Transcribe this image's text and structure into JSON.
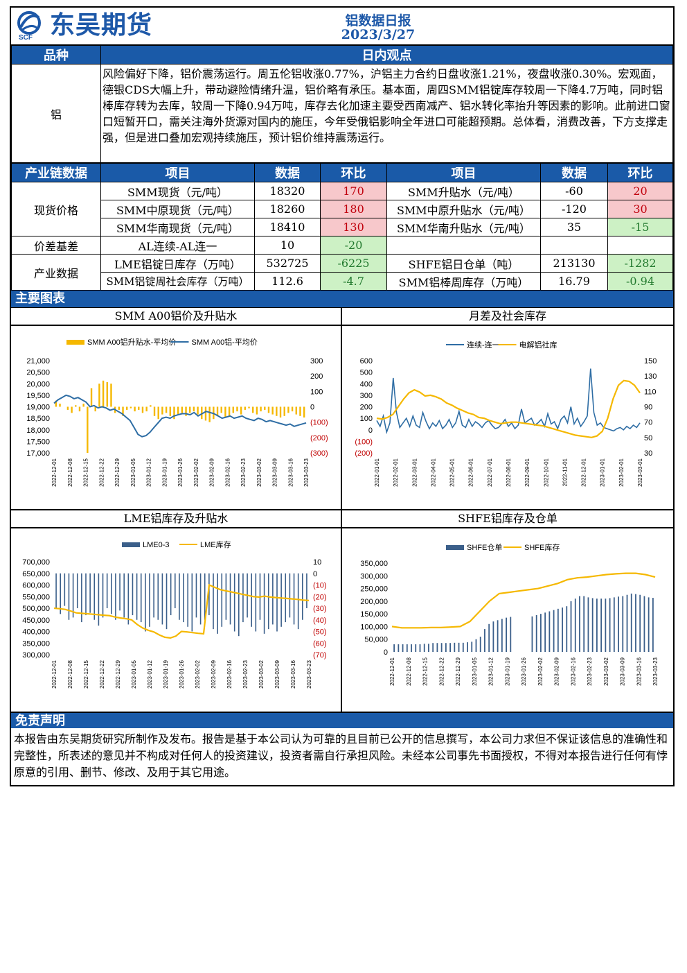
{
  "header": {
    "brand": "东吴期货",
    "logo_sub": "SCF",
    "title": "铝数据日报",
    "date": "2023/3/27"
  },
  "view": {
    "col1": "品种",
    "col2": "日内观点",
    "variety": "铝",
    "text": "风险偏好下降，铝价震荡运行。周五伦铝收涨0.77%，沪铝主力合约日盘收涨1.21%，夜盘收涨0.30%。宏观面，德银CDS大幅上升，带动避险情绪升温，铝价略有承压。基本面，周四SMM铝锭库存较周一下降4.7万吨，同时铝棒库存转为去库，较周一下降0.94万吨，库存去化加速主要受西南减产、铝水转化率抬升等因素的影响。此前进口窗口短暂开口，需关注海外货源对国内的施压，今年受俄铝影响全年进口可能超预期。总体看，消费改善，下方支撑走强，但是进口叠加宏观持续施压，预计铝价维持震荡运行。"
  },
  "chain": {
    "headers": [
      "产业链数据",
      "项目",
      "数据",
      "环比",
      "项目",
      "数据",
      "环比"
    ],
    "groups": {
      "spot": "现货价格",
      "spread": "价差基差",
      "industry": "产业数据"
    },
    "rows": [
      {
        "l_item": "SMM现货（元/吨）",
        "l_val": "18320",
        "l_chg": "170",
        "r_item": "SMM升贴水（元/吨）",
        "r_val": "-60",
        "r_chg": "20"
      },
      {
        "l_item": "SMM中原现货（元/吨）",
        "l_val": "18260",
        "l_chg": "180",
        "r_item": "SMM中原升贴水（元/吨）",
        "r_val": "-120",
        "r_chg": "30"
      },
      {
        "l_item": "SMM华南现货（元/吨）",
        "l_val": "18410",
        "l_chg": "130",
        "r_item": "SMM华南升贴水（元/吨）",
        "r_val": "35",
        "r_chg": "-15"
      },
      {
        "l_item": "AL连续-AL连一",
        "l_val": "10",
        "l_chg": "-20",
        "r_item": "",
        "r_val": "",
        "r_chg": ""
      },
      {
        "l_item": "LME铝锭日库存（万吨）",
        "l_val": "532725",
        "l_chg": "-6225",
        "r_item": "SHFE铝日仓单（吨）",
        "r_val": "213130",
        "r_chg": "-1282"
      },
      {
        "l_item": "SMM铝锭周社会库存（万吨）",
        "l_val": "112.6",
        "l_chg": "-4.7",
        "r_item": "SMM铝棒周库存（万吨）",
        "r_val": "16.79",
        "r_chg": "-0.94"
      }
    ]
  },
  "charts_section": "主要图表",
  "chart_titles": [
    "SMM A00铝价及升贴水",
    "月差及社会库存",
    "LME铝库存及升贴水",
    "SHFE铝库存及仓单"
  ],
  "colors": {
    "blue": "#2e6da4",
    "gold": "#f5b800",
    "bar_blue": "#3b5f8a",
    "header": "#1a5aa8"
  },
  "chart_data": [
    {
      "type": "line",
      "title": "SMM A00铝价及升贴水",
      "series": [
        {
          "name": "SMM A00铝升贴水-平均价",
          "type": "bar",
          "axis": "right"
        },
        {
          "name": "SMM A00铝-平均价",
          "type": "line",
          "axis": "left"
        }
      ],
      "left_ticks": [
        "21,000",
        "20,500",
        "20,000",
        "19,500",
        "19,000",
        "18,500",
        "18,000",
        "17,500",
        "17,000"
      ],
      "right_ticks": [
        "300",
        "200",
        "100",
        "0",
        "(100)",
        "(200)",
        "(300)"
      ],
      "x_ticks": [
        "2022-12-01",
        "2022-12-08",
        "2022-12-15",
        "2022-12-22",
        "2022-12-29",
        "2023-01-05",
        "2023-01-12",
        "2023-01-19",
        "2023-01-26",
        "2023-02-02",
        "2023-02-09",
        "2023-02-16",
        "2023-02-23",
        "2023-03-02",
        "2023-03-09",
        "2023-03-16",
        "2023-03-23"
      ],
      "ylim_left": [
        17000,
        21000
      ],
      "ylim_right": [
        -300,
        300
      ],
      "line_values": [
        19150,
        19300,
        19400,
        19500,
        19450,
        19350,
        19400,
        19300,
        19200,
        19000,
        19050,
        18950,
        19000,
        18950,
        18850,
        18900,
        18800,
        18700,
        18550,
        18400,
        18100,
        17800,
        17700,
        17750,
        17900,
        18100,
        18300,
        18500,
        18550,
        18500,
        18600,
        18650,
        18700,
        18700,
        18650,
        18750,
        18600,
        18700,
        18800,
        18750,
        18700,
        18600,
        18500,
        18550,
        18600,
        18500,
        18550,
        18600,
        18500,
        18450,
        18400,
        18500,
        18450,
        18350,
        18400,
        18350,
        18300,
        18250,
        18200,
        18250,
        18150,
        18200,
        18250,
        18300
      ],
      "bar_values": [
        40,
        20,
        0,
        -20,
        -40,
        10,
        -30,
        20,
        -300,
        120,
        -30,
        150,
        170,
        160,
        150,
        -40,
        -20,
        -60,
        -20,
        -10,
        -30,
        -20,
        -40,
        -30,
        10,
        -60,
        -80,
        -50,
        -40,
        -60,
        -80,
        -50,
        -40,
        -60,
        -40,
        -30,
        -50,
        -80,
        -90,
        -100,
        -80,
        -60,
        -40,
        -70,
        -60,
        -40,
        -30,
        -50,
        -20,
        -10,
        -40,
        -50,
        -30,
        -20,
        -40,
        -50,
        -60,
        -70,
        -60,
        -40,
        -30,
        -50,
        -60,
        -70
      ]
    },
    {
      "type": "line",
      "title": "月差及社会库存",
      "series": [
        {
          "name": "连续-连一",
          "axis": "left"
        },
        {
          "name": "电解铝社库",
          "axis": "right"
        }
      ],
      "left_ticks": [
        "600",
        "500",
        "400",
        "300",
        "200",
        "100",
        "0",
        "(100)",
        "(200)"
      ],
      "right_ticks": [
        "150",
        "130",
        "110",
        "90",
        "70",
        "50",
        "30"
      ],
      "x_ticks": [
        "2022-01-01",
        "2022-02-01",
        "2022-03-01",
        "2022-04-01",
        "2022-05-01",
        "2022-06-01",
        "2022-07-01",
        "2022-08-01",
        "2022-09-01",
        "2022-10-01",
        "2022-11-01",
        "2022-12-01",
        "2023-01-01",
        "2023-02-01",
        "2023-03-01"
      ],
      "ylim_left": [
        -200,
        600
      ],
      "ylim_right": [
        30,
        150
      ],
      "spread_values": [
        80,
        30,
        120,
        -20,
        60,
        450,
        150,
        20,
        60,
        100,
        30,
        120,
        40,
        20,
        150,
        70,
        10,
        60,
        30,
        80,
        10,
        40,
        90,
        20,
        60,
        160,
        40,
        20,
        90,
        30,
        70,
        50,
        20,
        60,
        80,
        40,
        10,
        20,
        50,
        90,
        30,
        60,
        10,
        40,
        180,
        60,
        80,
        100,
        40,
        60,
        90,
        30,
        140,
        50,
        70,
        10,
        90,
        120,
        60,
        200,
        50,
        100,
        30,
        70,
        120,
        530,
        150,
        40,
        60,
        20,
        10,
        0,
        -10,
        10,
        20,
        0,
        30,
        10,
        40,
        20,
        60
      ],
      "stock_values": [
        75,
        74,
        76,
        80,
        90,
        100,
        108,
        112,
        109,
        104,
        105,
        103,
        100,
        95,
        92,
        88,
        85,
        82,
        80,
        76,
        75,
        72,
        70,
        68,
        69,
        70,
        70,
        69,
        68,
        67,
        66,
        65,
        63,
        61,
        59,
        57,
        55,
        53,
        52,
        51,
        50,
        52,
        58,
        75,
        100,
        118,
        124,
        123,
        118,
        108
      ]
    },
    {
      "type": "bar",
      "title": "LME铝库存及升贴水",
      "series": [
        {
          "name": "LME0-3",
          "type": "bar",
          "axis": "right"
        },
        {
          "name": "LME库存",
          "type": "line",
          "axis": "left"
        }
      ],
      "left_ticks": [
        "700,000",
        "650,000",
        "600,000",
        "550,000",
        "500,000",
        "450,000",
        "400,000",
        "350,000",
        "300,000"
      ],
      "right_ticks": [
        "10",
        "0",
        "(10)",
        "(20)",
        "(30)",
        "(40)",
        "(50)",
        "(60)",
        "(70)"
      ],
      "x_ticks": [
        "2022-12-01",
        "2022-12-08",
        "2022-12-15",
        "2022-12-22",
        "2022-12-29",
        "2023-01-05",
        "2023-01-12",
        "2023-01-19",
        "2023-01-26",
        "2023-02-02",
        "2023-02-09",
        "2023-02-16",
        "2023-02-23",
        "2023-03-02",
        "2023-03-09",
        "2023-03-16",
        "2023-03-23"
      ],
      "ylim_left": [
        300000,
        700000
      ],
      "ylim_right": [
        -70,
        10
      ],
      "bar_values": [
        -30,
        -35,
        -28,
        -40,
        -38,
        -30,
        -42,
        -36,
        -34,
        -40,
        -45,
        -38,
        -30,
        -35,
        -40,
        -32,
        -38,
        -44,
        -36,
        -40,
        -42,
        -50,
        -46,
        -38,
        -40,
        -44,
        -48,
        -36,
        -30,
        -40,
        -42,
        -46,
        -50,
        -38,
        -44,
        -40,
        -36,
        -48,
        -52,
        -46,
        -40,
        -44,
        -50,
        -54,
        -42,
        -38,
        -46,
        -50,
        -40,
        -52,
        -48,
        -44,
        -50,
        -46,
        -42,
        -38,
        -44,
        -48,
        -40,
        -30
      ],
      "stock_values": [
        500000,
        498000,
        495000,
        488000,
        480000,
        478000,
        476000,
        474000,
        472000,
        470000,
        468000,
        462000,
        458000,
        455000,
        450000,
        430000,
        415000,
        405000,
        398000,
        385000,
        375000,
        372000,
        380000,
        400000,
        398000,
        395000,
        392000,
        390000,
        600000,
        590000,
        580000,
        575000,
        570000,
        565000,
        560000,
        555000,
        550000,
        548000,
        552000,
        548000,
        546000,
        544000,
        542000,
        540000,
        538000,
        535000,
        533000
      ]
    },
    {
      "type": "bar",
      "title": "SHFE铝库存及仓单",
      "series": [
        {
          "name": "SHFE仓单",
          "type": "bar"
        },
        {
          "name": "SHFE库存",
          "type": "line"
        }
      ],
      "left_ticks": [
        "350,000",
        "300,000",
        "250,000",
        "200,000",
        "150,000",
        "100,000",
        "50,000",
        "0"
      ],
      "x_ticks": [
        "2022-12-01",
        "2022-12-08",
        "2022-12-15",
        "2022-12-22",
        "2022-12-29",
        "2023-01-05",
        "2023-01-12",
        "2023-01-19",
        "2023-01-26",
        "2023-02-02",
        "2023-02-09",
        "2023-02-16",
        "2023-02-23",
        "2023-03-02",
        "2023-03-09",
        "2023-03-16",
        "2023-03-23"
      ],
      "ylim": [
        0,
        350000
      ],
      "bar_values": [
        30000,
        30000,
        30000,
        30000,
        30000,
        30000,
        30000,
        32000,
        32000,
        35000,
        35000,
        35000,
        35000,
        35000,
        36000,
        36000,
        36000,
        38000,
        40000,
        50000,
        60000,
        90000,
        110000,
        120000,
        125000,
        130000,
        135000,
        138000,
        0,
        0,
        0,
        0,
        140000,
        145000,
        150000,
        155000,
        160000,
        165000,
        170000,
        175000,
        180000,
        200000,
        210000,
        220000,
        220000,
        215000,
        212000,
        210000,
        210000,
        210000,
        212000,
        215000,
        218000,
        220000,
        225000,
        230000,
        228000,
        225000,
        220000,
        215000,
        213130
      ],
      "stock_values": [
        100000,
        95000,
        95000,
        95000,
        96000,
        96000,
        98000,
        100000,
        120000,
        160000,
        200000,
        230000,
        235000,
        240000,
        245000,
        250000,
        260000,
        270000,
        285000,
        292000,
        295000,
        300000,
        305000,
        308000,
        310000,
        310000,
        305000,
        295000
      ]
    }
  ],
  "disclaimer": {
    "title": "免责声明",
    "text": "本报告由东吴期货研究所制作及发布。报告是基于本公司认为可靠的且目前已公开的信息撰写，本公司力求但不保证该信息的准确性和完整性，所表述的意见并不构成对任何人的投资建议，投资者需自行承担风险。未经本公司事先书面授权，不得对本报告进行任何有悖原意的引用、删节、修改、及用于其它用途。"
  }
}
